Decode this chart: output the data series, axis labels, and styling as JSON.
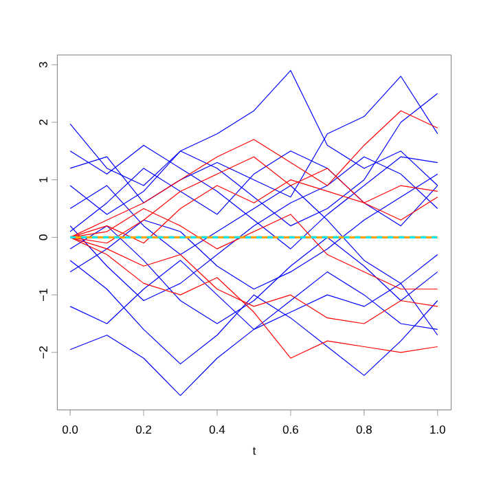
{
  "chart_data": {
    "type": "line",
    "xlabel": "t",
    "x": [
      0,
      0.1,
      0.2,
      0.3,
      0.4,
      0.5,
      0.6,
      0.7,
      0.8,
      0.9,
      1.0
    ],
    "xlim": [
      -0.035,
      1.037
    ],
    "ylim": [
      -3.0,
      3.17
    ],
    "xticks": [
      {
        "value": 0,
        "label": "0.0"
      },
      {
        "value": 0.2,
        "label": "0.2"
      },
      {
        "value": 0.4,
        "label": "0.4"
      },
      {
        "value": 0.6,
        "label": "0.6"
      },
      {
        "value": 0.8,
        "label": "0.8"
      },
      {
        "value": 1,
        "label": "1.0"
      }
    ],
    "yticks": [
      {
        "value": -2,
        "label": "−2"
      },
      {
        "value": -1,
        "label": "−1"
      },
      0,
      1,
      2,
      3
    ],
    "grid": false,
    "marker": "none",
    "series": [
      {
        "color": "#0000ff",
        "values": [
          1.97,
          1.2,
          0.9,
          1.5,
          1.8,
          2.2,
          2.9,
          1.6,
          1.2,
          1.5,
          0.9
        ]
      },
      {
        "color": "#0000ff",
        "values": [
          -1.95,
          -1.7,
          -2.1,
          -2.75,
          -2.1,
          -1.6,
          -1.3,
          -1.0,
          -1.2,
          -0.8,
          -1.7
        ]
      },
      {
        "color": "#0000ff",
        "values": [
          1.2,
          1.4,
          0.6,
          1.0,
          1.3,
          1.0,
          0.7,
          1.8,
          2.1,
          2.8,
          1.8
        ]
      },
      {
        "color": "#0000ff",
        "values": [
          0.2,
          -0.5,
          -1.1,
          -0.8,
          -0.3,
          0.2,
          0.6,
          0.9,
          1.4,
          1.1,
          0.5
        ]
      },
      {
        "color": "#0000ff",
        "values": [
          -0.4,
          -0.9,
          -1.6,
          -2.2,
          -1.7,
          -1.0,
          -1.4,
          -1.9,
          -2.4,
          -1.8,
          -1.1
        ]
      },
      {
        "color": "#0000ff",
        "values": [
          0.9,
          0.4,
          0.8,
          1.5,
          1.2,
          0.7,
          0.2,
          0.5,
          1.0,
          2.0,
          2.5
        ]
      },
      {
        "color": "#0000ff",
        "values": [
          -0.6,
          -0.2,
          0.3,
          0.1,
          -0.5,
          -0.9,
          -0.6,
          -0.2,
          0.3,
          0.7,
          1.1
        ]
      },
      {
        "color": "#0000ff",
        "values": [
          0.5,
          0.9,
          0.2,
          -0.3,
          0.1,
          0.5,
          0.9,
          0.3,
          -0.4,
          -0.8,
          -0.3
        ]
      },
      {
        "color": "#0000ff",
        "values": [
          -1.2,
          -1.5,
          -0.9,
          -0.4,
          -1.0,
          -1.6,
          -1.1,
          -0.6,
          -1.0,
          -1.5,
          -1.6
        ]
      },
      {
        "color": "#0000ff",
        "values": [
          0.1,
          0.6,
          1.2,
          0.8,
          0.4,
          1.1,
          1.5,
          1.2,
          0.6,
          0.2,
          0.9
        ]
      },
      {
        "color": "#0000ff",
        "values": [
          -0.2,
          0.2,
          -0.4,
          -1.1,
          -1.5,
          -1.1,
          -0.5,
          0.0,
          -0.5,
          -1.1,
          -0.6
        ]
      },
      {
        "color": "#0000ff",
        "values": [
          1.5,
          1.1,
          1.6,
          1.2,
          0.8,
          0.3,
          -0.2,
          0.4,
          0.9,
          1.4,
          1.3
        ]
      },
      {
        "color": "#ff0000",
        "values": [
          0,
          0.3,
          0.6,
          1.0,
          1.4,
          1.7,
          1.3,
          0.9,
          1.6,
          2.2,
          1.9
        ]
      },
      {
        "color": "#ff0000",
        "values": [
          0,
          -0.3,
          -0.8,
          -1.0,
          -0.7,
          -1.3,
          -2.1,
          -1.8,
          -1.9,
          -2.0,
          -1.9
        ]
      },
      {
        "color": "#ff0000",
        "values": [
          0,
          0.2,
          -0.1,
          0.5,
          0.9,
          0.6,
          1.0,
          0.8,
          0.6,
          0.9,
          0.8
        ]
      },
      {
        "color": "#ff0000",
        "values": [
          0,
          -0.2,
          -0.5,
          -0.3,
          -0.9,
          -1.2,
          -1.0,
          -1.4,
          -1.5,
          -1.1,
          -1.2
        ]
      },
      {
        "color": "#ff0000",
        "values": [
          0,
          0.1,
          0.5,
          0.2,
          -0.2,
          0.1,
          0.4,
          -0.3,
          -0.6,
          -0.9,
          -0.9
        ]
      },
      {
        "color": "#ff0000",
        "values": [
          0,
          -0.1,
          0.3,
          0.8,
          1.1,
          1.4,
          0.9,
          1.2,
          0.6,
          0.3,
          0.7
        ]
      },
      {
        "color": "#ffa500",
        "line_style": "solid",
        "values": [
          0,
          0,
          0,
          0,
          0,
          0,
          0,
          0,
          0,
          0,
          0
        ]
      },
      {
        "color": "#00e5ee",
        "line_style": "dashed",
        "values": [
          0,
          0,
          0,
          0,
          0,
          0,
          0,
          0,
          0,
          0,
          0
        ]
      }
    ]
  }
}
